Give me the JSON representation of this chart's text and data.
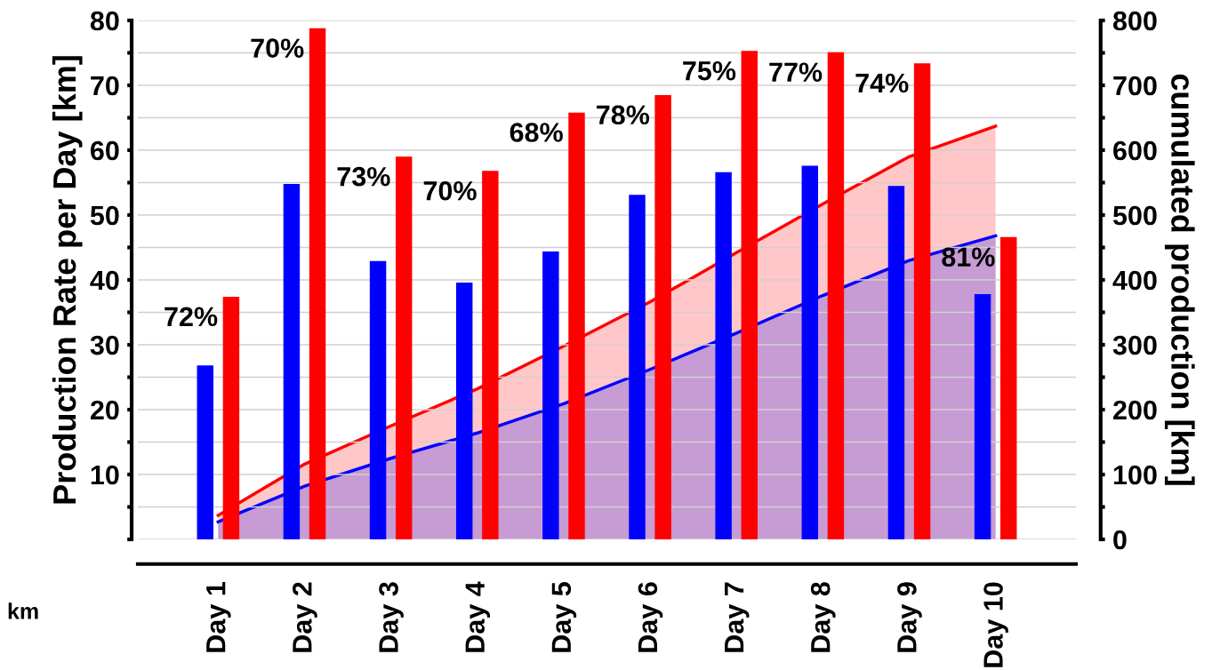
{
  "chart_data": {
    "type": "bar",
    "ylabel": "Production Rate per Day [km]",
    "y2label": "cumulated production [km]",
    "categories": [
      "Day 1",
      "Day 2",
      "Day 3",
      "Day 4",
      "Day 5",
      "Day 6",
      "Day 7",
      "Day 8",
      "Day 9",
      "Day 10"
    ],
    "series": [
      {
        "color": "#0000ff",
        "values": [
          26.8,
          54.8,
          42.9,
          39.6,
          44.4,
          53.1,
          56.6,
          57.6,
          54.5,
          37.8
        ]
      },
      {
        "color": "#ff0000",
        "values": [
          37.4,
          78.8,
          59.0,
          56.8,
          65.8,
          68.5,
          75.3,
          75.1,
          73.4,
          46.6
        ]
      },
      {
        "type": "area",
        "axis": "y2",
        "color": "#ff0000",
        "values": [
          37,
          116,
          175,
          232,
          298,
          366,
          442,
          517,
          590,
          637
        ]
      },
      {
        "type": "area",
        "axis": "y2",
        "color": "#0000ff",
        "values": [
          27,
          82,
          125,
          164,
          209,
          262,
          318,
          376,
          430,
          468
        ]
      }
    ],
    "ylim": [
      0,
      80
    ],
    "yticks": [
      {
        "value": 0,
        "label": null
      },
      {
        "value": 5,
        "label": null
      },
      10,
      {
        "value": 15,
        "label": null
      },
      20,
      {
        "value": 25,
        "label": null
      },
      30,
      {
        "value": 35,
        "label": null
      },
      40,
      {
        "value": 45,
        "label": null
      },
      50,
      {
        "value": 55,
        "label": null
      },
      60,
      {
        "value": 65,
        "label": null
      },
      70,
      {
        "value": 75,
        "label": null
      },
      80
    ],
    "y2lim": [
      0,
      800
    ],
    "y2ticks": [
      0,
      {
        "value": 50,
        "label": null
      },
      100,
      {
        "value": 150,
        "label": null
      },
      200,
      {
        "value": 250,
        "label": null
      },
      300,
      {
        "value": 350,
        "label": null
      },
      400,
      {
        "value": 450,
        "label": null
      },
      500,
      {
        "value": 550,
        "label": null
      },
      600,
      {
        "value": 650,
        "label": null
      },
      700,
      {
        "value": 750,
        "label": null
      },
      800
    ],
    "grid": "y",
    "annotations": [
      "72%",
      "70%",
      "73%",
      "70%",
      "68%",
      "78%",
      "75%",
      "77%",
      "74%",
      "81%",
      "km"
    ]
  }
}
